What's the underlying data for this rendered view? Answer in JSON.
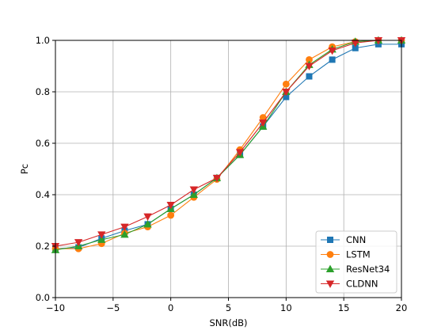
{
  "chart_data": {
    "type": "line",
    "title": "",
    "xlabel": "SNR(dB)",
    "ylabel": "Pc",
    "xlim": [
      -10,
      20
    ],
    "ylim": [
      0.0,
      1.0
    ],
    "grid": true,
    "legend_position": "bottom-right",
    "x_ticks": [
      -10,
      -5,
      0,
      5,
      10,
      15,
      20
    ],
    "y_ticks": [
      0.0,
      0.2,
      0.4,
      0.6,
      0.8,
      1.0
    ],
    "x_tick_labels": [
      "−10",
      "−5",
      "0",
      "5",
      "10",
      "15",
      "20"
    ],
    "y_tick_labels": [
      "0.0",
      "0.2",
      "0.4",
      "0.6",
      "0.8",
      "1.0"
    ],
    "x": [
      -10,
      -8,
      -6,
      -4,
      -2,
      0,
      2,
      4,
      6,
      8,
      10,
      12,
      14,
      16,
      18,
      20
    ],
    "series": [
      {
        "name": "CNN",
        "marker": "square",
        "color": "#1f77b4",
        "values": [
          0.19,
          0.195,
          0.23,
          0.26,
          0.285,
          0.345,
          0.4,
          0.465,
          0.555,
          0.665,
          0.78,
          0.86,
          0.925,
          0.97,
          0.985,
          0.985
        ]
      },
      {
        "name": "LSTM",
        "marker": "circle",
        "color": "#ff7f0e",
        "values": [
          0.19,
          0.19,
          0.21,
          0.25,
          0.275,
          0.32,
          0.39,
          0.46,
          0.575,
          0.7,
          0.83,
          0.925,
          0.975,
          0.995,
          1.0,
          1.0
        ]
      },
      {
        "name": "ResNet34",
        "marker": "triangle-up",
        "color": "#2ca02c",
        "values": [
          0.185,
          0.2,
          0.225,
          0.245,
          0.285,
          0.345,
          0.4,
          0.465,
          0.555,
          0.665,
          0.8,
          0.905,
          0.965,
          0.995,
          1.0,
          1.0
        ]
      },
      {
        "name": "CLDNN",
        "marker": "triangle-down",
        "color": "#d62728",
        "values": [
          0.2,
          0.215,
          0.245,
          0.275,
          0.315,
          0.36,
          0.42,
          0.465,
          0.565,
          0.68,
          0.8,
          0.9,
          0.96,
          0.99,
          1.0,
          1.0
        ]
      }
    ]
  }
}
